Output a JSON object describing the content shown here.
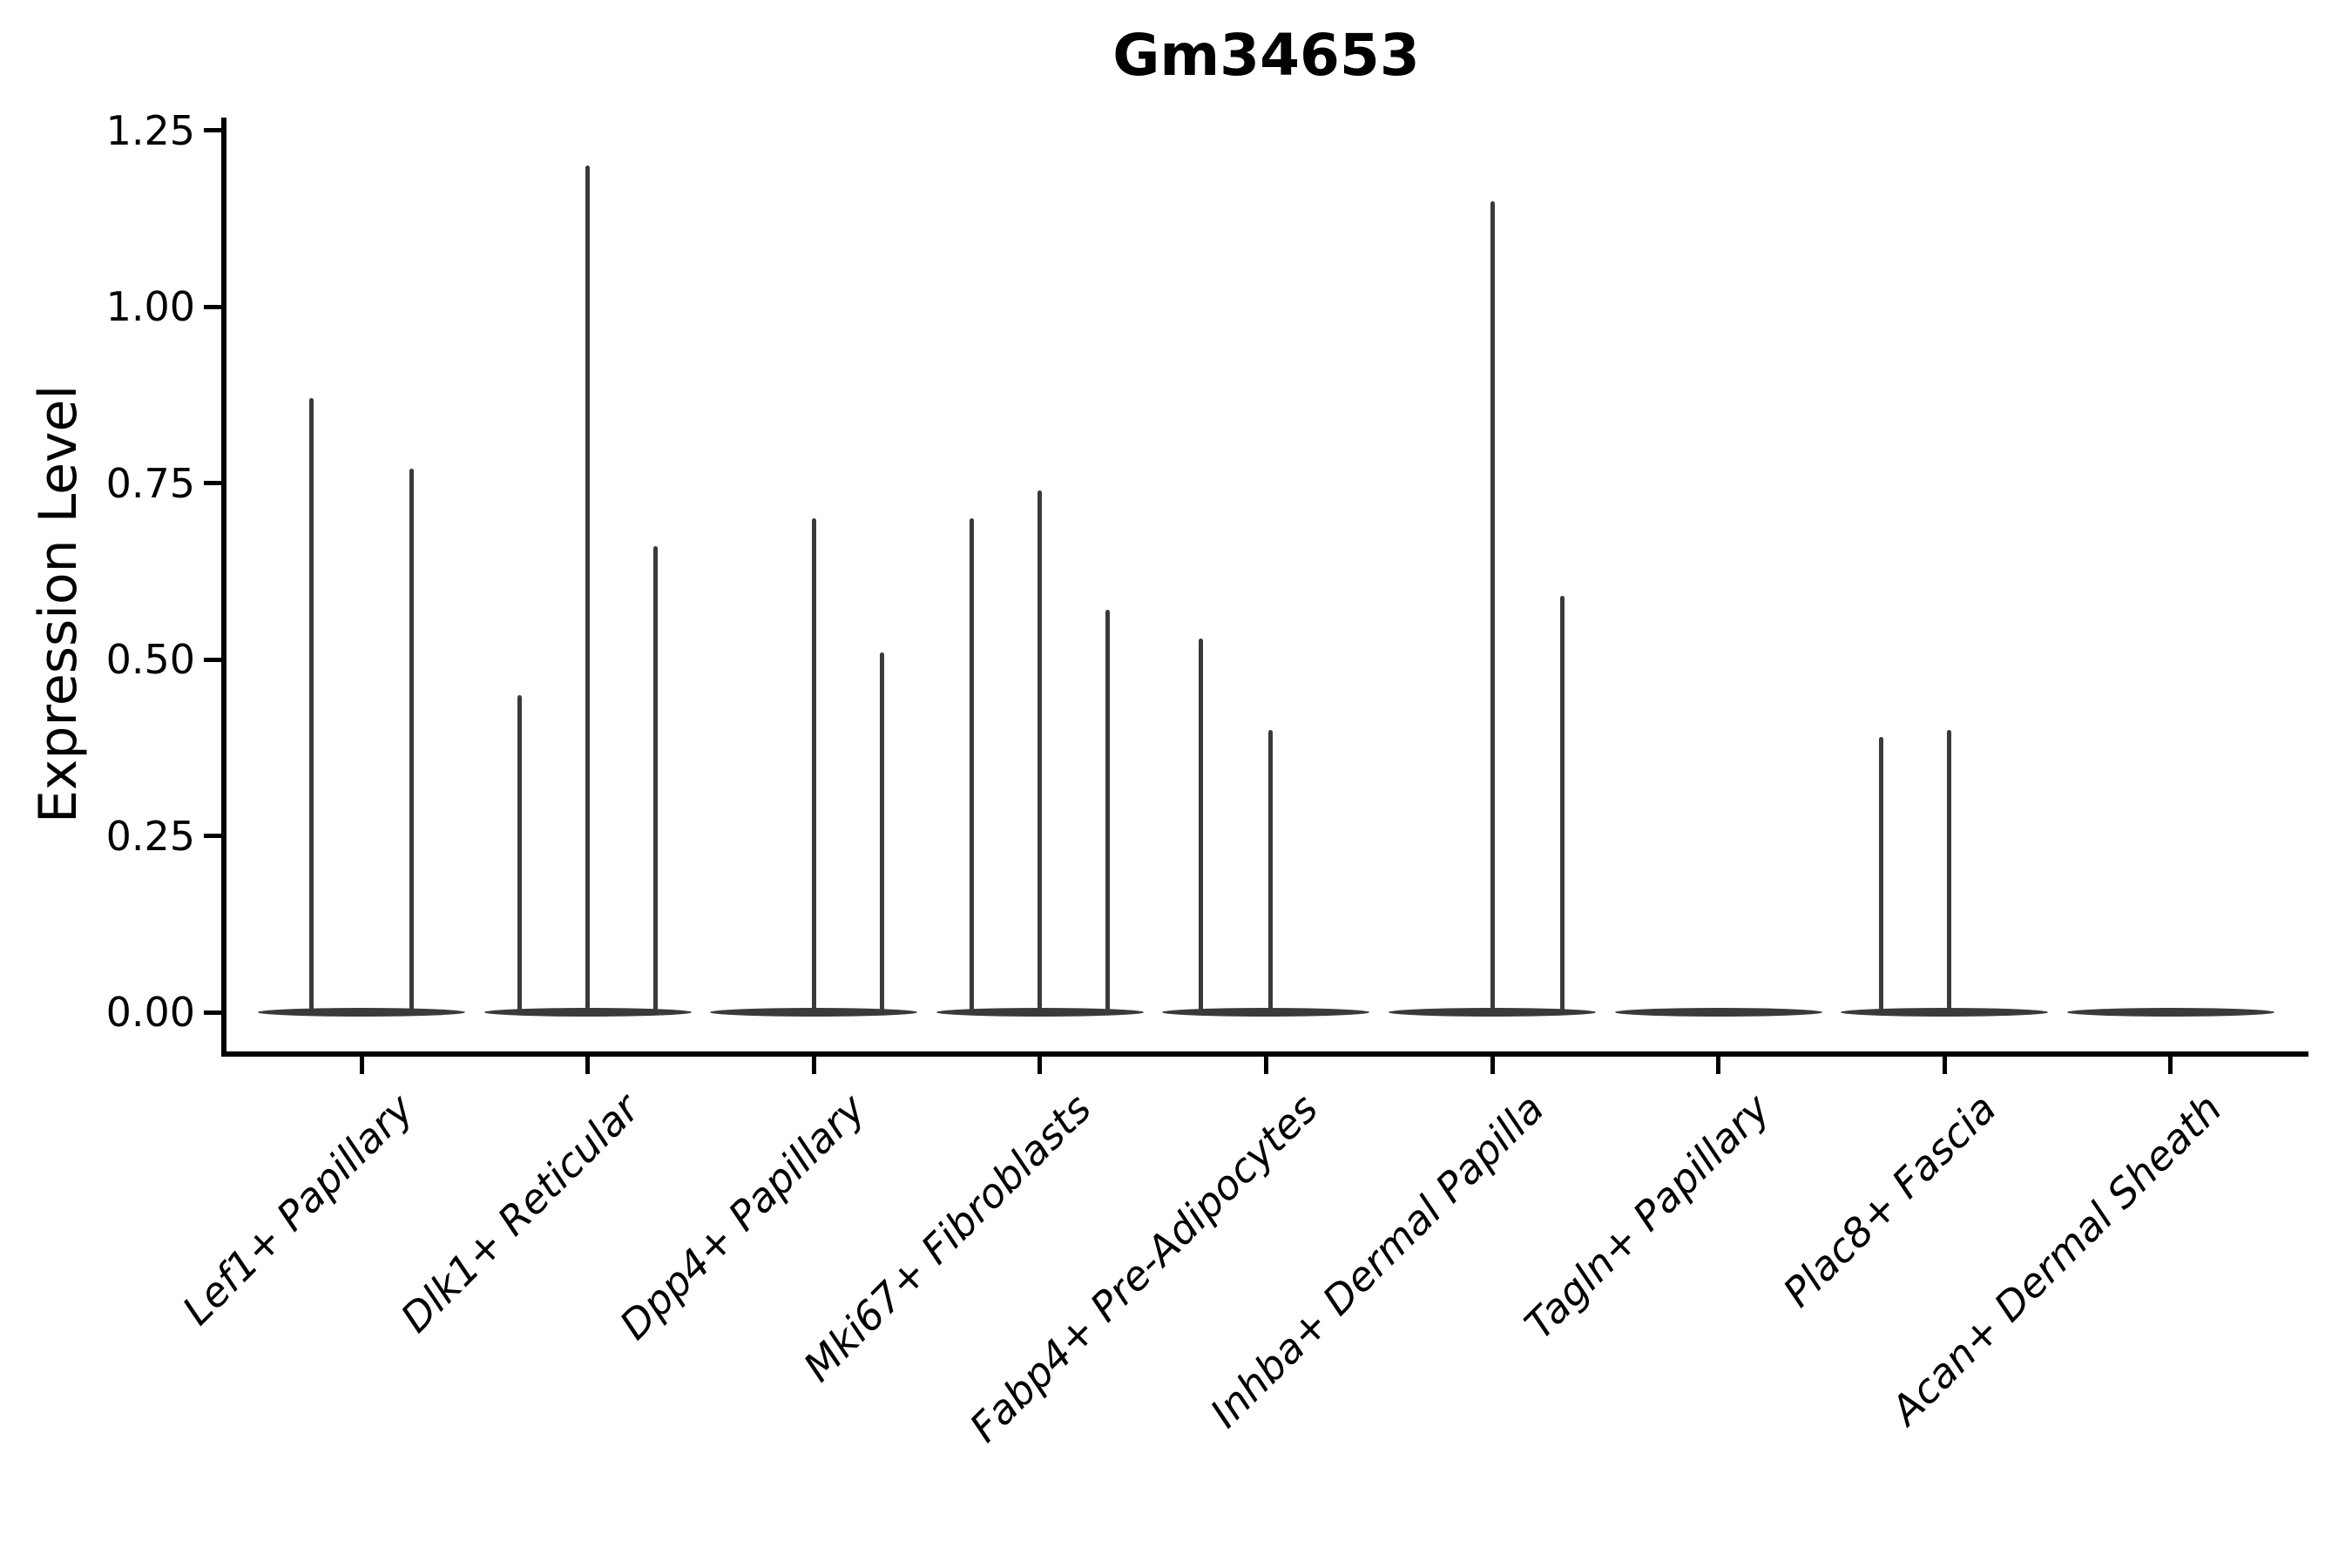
{
  "chart_data": {
    "type": "violin",
    "title": "Gm34653",
    "ylabel": "Expression Level",
    "xlabel": "",
    "grid": false,
    "legend": null,
    "ylim": [
      -0.07,
      1.27
    ],
    "ytick_values": [
      0.0,
      0.25,
      0.5,
      0.75,
      1.0,
      1.25
    ],
    "ytick_labels": [
      "0.00",
      "0.25",
      "0.50",
      "0.75",
      "1.00",
      "1.25"
    ],
    "violin_color": "#3a3a3a",
    "axis_color": "#000000",
    "note": "Violin plot; each cell-type group shows flat violins collapsed at 0 with thin spikes (offset = fraction of group width from group center, value = expression level at spike tip)",
    "categories": [
      {
        "label": "Lef1+ Papillary",
        "spikes": [
          {
            "offset": -0.22,
            "value": 0.87
          },
          {
            "offset": 0.22,
            "value": 0.77
          }
        ]
      },
      {
        "label": "Dlk1+ Reticular",
        "spikes": [
          {
            "offset": -0.3,
            "value": 0.45
          },
          {
            "offset": 0.0,
            "value": 1.2
          },
          {
            "offset": 0.3,
            "value": 0.66
          }
        ]
      },
      {
        "label": "Dpp4+ Papillary",
        "spikes": [
          {
            "offset": 0.0,
            "value": 0.7
          },
          {
            "offset": 0.3,
            "value": 0.51
          }
        ]
      },
      {
        "label": "Mki67+ Fibroblasts",
        "spikes": [
          {
            "offset": -0.3,
            "value": 0.7
          },
          {
            "offset": 0.0,
            "value": 0.74
          },
          {
            "offset": 0.3,
            "value": 0.57
          }
        ]
      },
      {
        "label": "Fabp4+ Pre-Adipocytes",
        "spikes": [
          {
            "offset": -0.29,
            "value": 0.53
          },
          {
            "offset": 0.02,
            "value": 0.4
          }
        ]
      },
      {
        "label": "Inhba+ Dermal Papilla",
        "spikes": [
          {
            "offset": 0.0,
            "value": 1.15
          },
          {
            "offset": 0.31,
            "value": 0.59
          }
        ]
      },
      {
        "label": "Tagln+ Papillary",
        "spikes": []
      },
      {
        "label": "Plac8+ Fascia",
        "spikes": [
          {
            "offset": -0.28,
            "value": 0.39
          },
          {
            "offset": 0.02,
            "value": 0.4
          }
        ]
      },
      {
        "label": "Acan+ Dermal Sheath",
        "spikes": []
      }
    ]
  }
}
